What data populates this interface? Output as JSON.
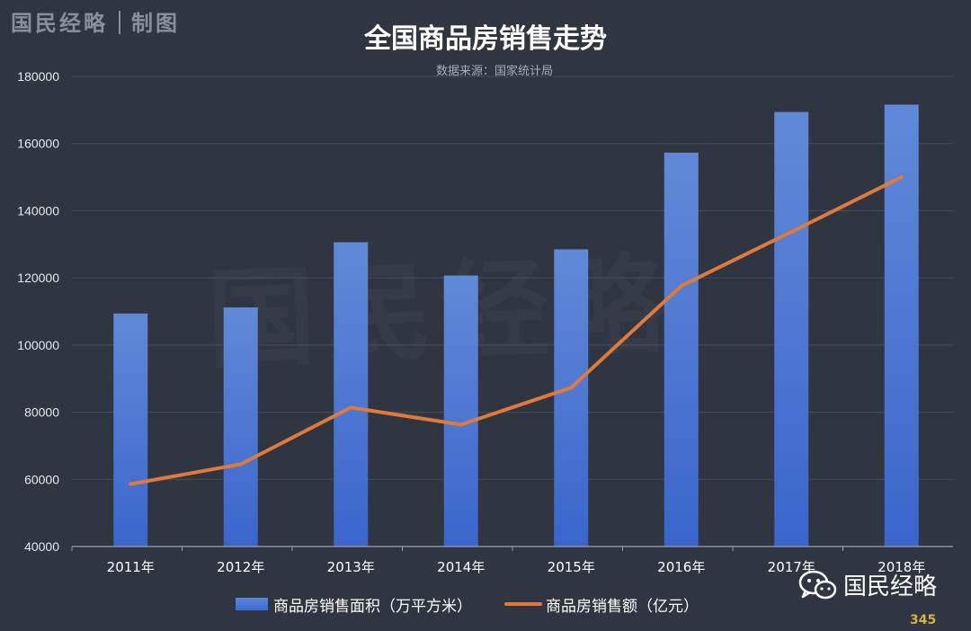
{
  "brand": {
    "name": "国民经略",
    "suffix": "制图"
  },
  "chart_data": {
    "type": "bar",
    "title": "全国商品房销售走势",
    "subtitle": "数据来源：国家统计局",
    "categories": [
      "2011年",
      "2012年",
      "2013年",
      "2014年",
      "2015年",
      "2016年",
      "2017年",
      "2018年"
    ],
    "series": [
      {
        "name": "商品房销售面积（万平方米）",
        "type": "bar",
        "color": "#4a78d6",
        "values": [
          109400,
          111200,
          130600,
          120700,
          128500,
          157300,
          169400,
          171600
        ]
      },
      {
        "name": "商品房销售额（亿元）",
        "type": "line",
        "color": "#e07a3a",
        "values": [
          58600,
          64500,
          81400,
          76300,
          87300,
          117600,
          133700,
          150000
        ]
      }
    ],
    "ylim": [
      40000,
      180000
    ],
    "yticks": [
      40000,
      60000,
      80000,
      100000,
      120000,
      140000,
      160000,
      180000
    ],
    "grid": true,
    "legend": "bottom"
  },
  "watermark": "国民经略",
  "footer": {
    "wechat_label": "国民经略",
    "corner_mark": "345"
  },
  "icons": {
    "wechat": "wechat-icon"
  }
}
